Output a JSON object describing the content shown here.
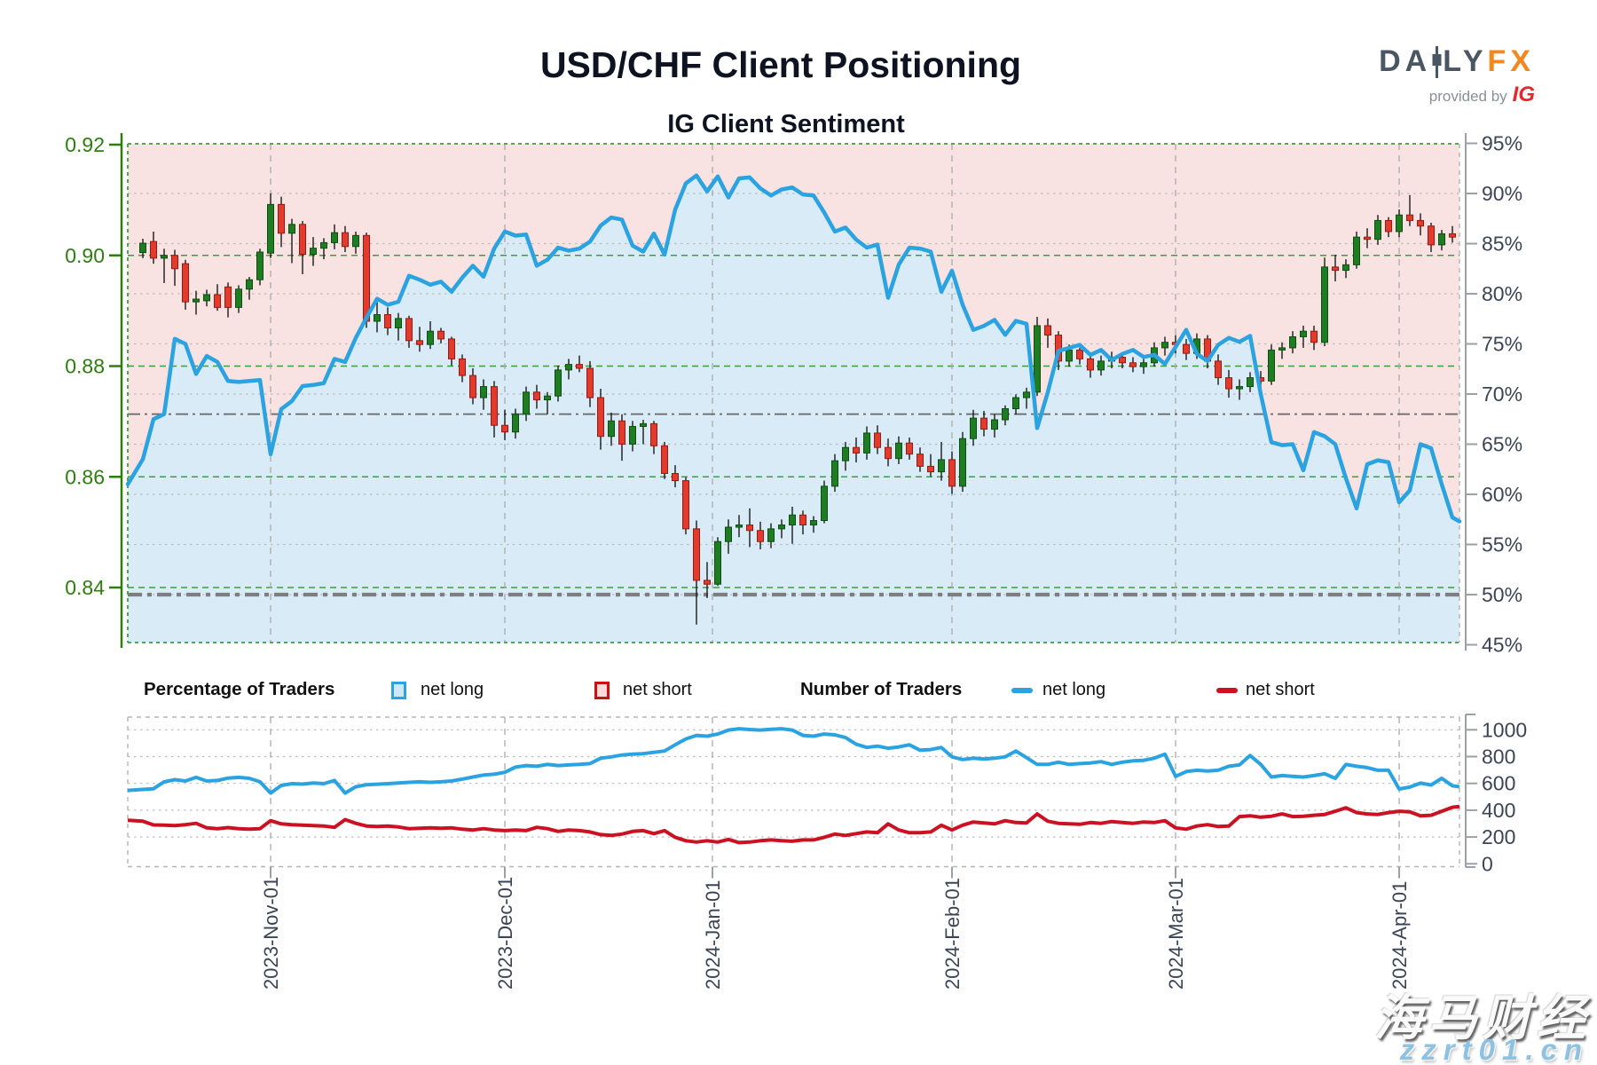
{
  "title": "USD/CHF Client Positioning",
  "subtitle": "IG Client Sentiment",
  "logo": {
    "brand_left": "DA",
    "brand_right": "LY",
    "brand_accent": "FX",
    "provided_by": "provided by",
    "provider": "IG",
    "accent_color": "#f4871f",
    "dark_color": "#4a5661",
    "provider_color": "#e8262d"
  },
  "legend": {
    "pct_group_title": "Percentage of Traders",
    "pct_net_long": "net long",
    "pct_net_short": "net short",
    "num_group_title": "Number of Traders",
    "num_net_long": "net long",
    "num_net_short": "net short"
  },
  "watermark": {
    "line1": "海马财经",
    "line2": "zzrt01.cn"
  },
  "chart_data": {
    "type": "candlestick+line",
    "title": "USD/CHF Client Positioning",
    "subtitle": "IG Client Sentiment",
    "price_axis": {
      "ticks": [
        0.92,
        0.9,
        0.88,
        0.86,
        0.84
      ],
      "min": 0.8296,
      "max": 0.92
    },
    "pct_axis": {
      "ticks": [
        95,
        90,
        85,
        80,
        75,
        70,
        65,
        60,
        55,
        50,
        45
      ],
      "min": 45,
      "max": 95
    },
    "count_axis": {
      "ticks": [
        1000,
        800,
        600,
        400,
        200,
        0
      ],
      "min": 0,
      "max": 1100
    },
    "ref_lines": {
      "thin_pct": 68,
      "thick_pct": 50
    },
    "months": [
      {
        "label": "2023-Nov-01",
        "idx": 12
      },
      {
        "label": "2023-Dec-01",
        "idx": 34
      },
      {
        "label": "2024-Jan-01",
        "idx": 53.5
      },
      {
        "label": "2024-Feb-01",
        "idx": 76
      },
      {
        "label": "2024-Mar-01",
        "idx": 97
      },
      {
        "label": "2024-Apr-01",
        "idx": 118
      }
    ],
    "dates": [
      "Oct-16",
      "Oct-17",
      "Oct-18",
      "Oct-19",
      "Oct-20",
      "Oct-23",
      "Oct-24",
      "Oct-25",
      "Oct-26",
      "Oct-27",
      "Oct-30",
      "Oct-31",
      "Nov-01",
      "Nov-02",
      "Nov-03",
      "Nov-06",
      "Nov-07",
      "Nov-08",
      "Nov-09",
      "Nov-10",
      "Nov-13",
      "Nov-14",
      "Nov-15",
      "Nov-16",
      "Nov-17",
      "Nov-20",
      "Nov-21",
      "Nov-22",
      "Nov-23",
      "Nov-24",
      "Nov-27",
      "Nov-28",
      "Nov-29",
      "Nov-30",
      "Dec-01",
      "Dec-04",
      "Dec-05",
      "Dec-06",
      "Dec-07",
      "Dec-08",
      "Dec-11",
      "Dec-12",
      "Dec-13",
      "Dec-14",
      "Dec-15",
      "Dec-18",
      "Dec-19",
      "Dec-20",
      "Dec-21",
      "Dec-22",
      "Dec-26",
      "Dec-27",
      "Dec-28",
      "Dec-29",
      "Jan-02",
      "Jan-03",
      "Jan-04",
      "Jan-05",
      "Jan-08",
      "Jan-09",
      "Jan-10",
      "Jan-11",
      "Jan-12",
      "Jan-15",
      "Jan-16",
      "Jan-17",
      "Jan-18",
      "Jan-19",
      "Jan-22",
      "Jan-23",
      "Jan-24",
      "Jan-25",
      "Jan-26",
      "Jan-29",
      "Jan-30",
      "Jan-31",
      "Feb-01",
      "Feb-02",
      "Feb-05",
      "Feb-06",
      "Feb-07",
      "Feb-08",
      "Feb-09",
      "Feb-12",
      "Feb-13",
      "Feb-14",
      "Feb-15",
      "Feb-16",
      "Feb-19",
      "Feb-20",
      "Feb-21",
      "Feb-22",
      "Feb-23",
      "Feb-26",
      "Feb-27",
      "Feb-28",
      "Feb-29",
      "Mar-01",
      "Mar-04",
      "Mar-05",
      "Mar-06",
      "Mar-07",
      "Mar-08",
      "Mar-11",
      "Mar-12",
      "Mar-13",
      "Mar-14",
      "Mar-15",
      "Mar-18",
      "Mar-19",
      "Mar-20",
      "Mar-21",
      "Mar-22",
      "Mar-25",
      "Mar-26",
      "Mar-27",
      "Mar-28",
      "Mar-29",
      "Apr-01",
      "Apr-02",
      "Apr-03",
      "Apr-04",
      "Apr-05",
      "Apr-08"
    ],
    "candles": [
      [
        0.9005,
        0.903,
        0.8995,
        0.9022
      ],
      [
        0.9025,
        0.9043,
        0.8985,
        0.8995
      ],
      [
        0.8995,
        0.9012,
        0.895,
        0.9
      ],
      [
        0.9,
        0.901,
        0.8945,
        0.8976
      ],
      [
        0.8985,
        0.8992,
        0.8902,
        0.8916
      ],
      [
        0.8916,
        0.8936,
        0.8893,
        0.8921
      ],
      [
        0.8918,
        0.8938,
        0.8908,
        0.8929
      ],
      [
        0.8929,
        0.8948,
        0.89,
        0.8906
      ],
      [
        0.8943,
        0.8951,
        0.8888,
        0.8906
      ],
      [
        0.8906,
        0.8946,
        0.8896,
        0.8939
      ],
      [
        0.8939,
        0.8961,
        0.892,
        0.8956
      ],
      [
        0.8956,
        0.9012,
        0.8946,
        0.9006
      ],
      [
        0.9004,
        0.9112,
        0.8995,
        0.9092
      ],
      [
        0.9092,
        0.9106,
        0.9015,
        0.904
      ],
      [
        0.904,
        0.9066,
        0.8986,
        0.9056
      ],
      [
        0.9056,
        0.9062,
        0.8966,
        0.9002
      ],
      [
        0.9002,
        0.9033,
        0.8981,
        0.9013
      ],
      [
        0.9013,
        0.9031,
        0.8993,
        0.9023
      ],
      [
        0.9023,
        0.9056,
        0.9011,
        0.9041
      ],
      [
        0.9041,
        0.9053,
        0.9006,
        0.9016
      ],
      [
        0.9016,
        0.9043,
        0.9003,
        0.9036
      ],
      [
        0.9036,
        0.9041,
        0.8869,
        0.8881
      ],
      [
        0.8881,
        0.8916,
        0.8861,
        0.8893
      ],
      [
        0.8893,
        0.8906,
        0.8856,
        0.8869
      ],
      [
        0.8869,
        0.8896,
        0.8846,
        0.8886
      ],
      [
        0.8886,
        0.8891,
        0.8833,
        0.8846
      ],
      [
        0.8846,
        0.8871,
        0.8826,
        0.8839
      ],
      [
        0.8839,
        0.8881,
        0.8831,
        0.8863
      ],
      [
        0.8863,
        0.8869,
        0.8841,
        0.8849
      ],
      [
        0.8849,
        0.8853,
        0.8801,
        0.8813
      ],
      [
        0.8813,
        0.8821,
        0.8771,
        0.8783
      ],
      [
        0.8783,
        0.8796,
        0.8731,
        0.8743
      ],
      [
        0.8743,
        0.8776,
        0.8721,
        0.8763
      ],
      [
        0.8763,
        0.8773,
        0.8671,
        0.8693
      ],
      [
        0.8693,
        0.8721,
        0.8666,
        0.8681
      ],
      [
        0.8681,
        0.8723,
        0.8669,
        0.8713
      ],
      [
        0.8713,
        0.8763,
        0.8701,
        0.8753
      ],
      [
        0.8753,
        0.8766,
        0.8723,
        0.8739
      ],
      [
        0.8739,
        0.8753,
        0.8713,
        0.8746
      ],
      [
        0.8746,
        0.8801,
        0.8736,
        0.8793
      ],
      [
        0.8793,
        0.8813,
        0.8776,
        0.8803
      ],
      [
        0.8803,
        0.8819,
        0.8789,
        0.8796
      ],
      [
        0.8796,
        0.8809,
        0.8726,
        0.8743
      ],
      [
        0.8743,
        0.8759,
        0.8649,
        0.8673
      ],
      [
        0.8673,
        0.8716,
        0.8656,
        0.8701
      ],
      [
        0.8701,
        0.8713,
        0.8629,
        0.8659
      ],
      [
        0.8659,
        0.8701,
        0.8646,
        0.8691
      ],
      [
        0.8691,
        0.8703,
        0.8659,
        0.8696
      ],
      [
        0.8696,
        0.8701,
        0.8641,
        0.8656
      ],
      [
        0.8656,
        0.8663,
        0.8596,
        0.8606
      ],
      [
        0.8606,
        0.8621,
        0.8581,
        0.8593
      ],
      [
        0.8593,
        0.8599,
        0.8496,
        0.8506
      ],
      [
        0.8506,
        0.8521,
        0.8333,
        0.8413
      ],
      [
        0.8413,
        0.8446,
        0.8381,
        0.8406
      ],
      [
        0.8406,
        0.8491,
        0.8403,
        0.8483
      ],
      [
        0.8483,
        0.8523,
        0.8461,
        0.8509
      ],
      [
        0.8509,
        0.8531,
        0.8491,
        0.8513
      ],
      [
        0.8513,
        0.8543,
        0.8473,
        0.8503
      ],
      [
        0.8503,
        0.8519,
        0.8469,
        0.8483
      ],
      [
        0.8483,
        0.8516,
        0.8471,
        0.8506
      ],
      [
        0.8506,
        0.8523,
        0.8489,
        0.8513
      ],
      [
        0.8513,
        0.8546,
        0.8479,
        0.8531
      ],
      [
        0.8531,
        0.8539,
        0.8496,
        0.8513
      ],
      [
        0.8513,
        0.8529,
        0.8499,
        0.8521
      ],
      [
        0.8521,
        0.8593,
        0.8516,
        0.8583
      ],
      [
        0.8583,
        0.8641,
        0.8573,
        0.8629
      ],
      [
        0.8629,
        0.8663,
        0.8611,
        0.8653
      ],
      [
        0.8653,
        0.8671,
        0.8626,
        0.8643
      ],
      [
        0.8643,
        0.8691,
        0.8631,
        0.8679
      ],
      [
        0.8679,
        0.8693,
        0.8641,
        0.8653
      ],
      [
        0.8653,
        0.8669,
        0.8619,
        0.8633
      ],
      [
        0.8633,
        0.8673,
        0.8623,
        0.8661
      ],
      [
        0.8661,
        0.8671,
        0.8631,
        0.8641
      ],
      [
        0.8641,
        0.8653,
        0.8609,
        0.8619
      ],
      [
        0.8619,
        0.8641,
        0.8601,
        0.8609
      ],
      [
        0.8609,
        0.8663,
        0.8593,
        0.8631
      ],
      [
        0.8631,
        0.8646,
        0.8569,
        0.8583
      ],
      [
        0.8583,
        0.8681,
        0.8573,
        0.8669
      ],
      [
        0.8669,
        0.8721,
        0.8656,
        0.8706
      ],
      [
        0.8706,
        0.8719,
        0.8673,
        0.8686
      ],
      [
        0.8686,
        0.8713,
        0.8671,
        0.8703
      ],
      [
        0.8703,
        0.8729,
        0.8693,
        0.8723
      ],
      [
        0.8723,
        0.8749,
        0.8713,
        0.8743
      ],
      [
        0.8743,
        0.8761,
        0.8723,
        0.8753
      ],
      [
        0.8753,
        0.8889,
        0.8746,
        0.8873
      ],
      [
        0.8873,
        0.8886,
        0.8833,
        0.8856
      ],
      [
        0.8856,
        0.8863,
        0.8793,
        0.8809
      ],
      [
        0.8809,
        0.8839,
        0.8799,
        0.8829
      ],
      [
        0.8829,
        0.8833,
        0.8803,
        0.8813
      ],
      [
        0.8813,
        0.8821,
        0.8779,
        0.8793
      ],
      [
        0.8793,
        0.8819,
        0.8783,
        0.8809
      ],
      [
        0.8809,
        0.8826,
        0.8796,
        0.8816
      ],
      [
        0.8816,
        0.8823,
        0.8796,
        0.8806
      ],
      [
        0.8806,
        0.8816,
        0.8789,
        0.8799
      ],
      [
        0.8799,
        0.8813,
        0.8786,
        0.8806
      ],
      [
        0.8806,
        0.8843,
        0.8799,
        0.8833
      ],
      [
        0.8833,
        0.8853,
        0.8819,
        0.8843
      ],
      [
        0.8843,
        0.8856,
        0.8823,
        0.8839
      ],
      [
        0.8839,
        0.8849,
        0.8811,
        0.8823
      ],
      [
        0.8823,
        0.8859,
        0.8813,
        0.8849
      ],
      [
        0.8849,
        0.8856,
        0.8796,
        0.8809
      ],
      [
        0.8809,
        0.8821,
        0.8766,
        0.8779
      ],
      [
        0.8779,
        0.8793,
        0.8743,
        0.8759
      ],
      [
        0.8759,
        0.8776,
        0.8739,
        0.8763
      ],
      [
        0.8763,
        0.8789,
        0.8753,
        0.8779
      ],
      [
        0.8779,
        0.8791,
        0.8759,
        0.8773
      ],
      [
        0.8773,
        0.8839,
        0.8766,
        0.8829
      ],
      [
        0.8829,
        0.8843,
        0.8813,
        0.8833
      ],
      [
        0.8833,
        0.8863,
        0.8823,
        0.8853
      ],
      [
        0.8853,
        0.8873,
        0.8833,
        0.8863
      ],
      [
        0.8863,
        0.8873,
        0.8829,
        0.8843
      ],
      [
        0.8843,
        0.8996,
        0.8836,
        0.8979
      ],
      [
        0.8979,
        0.9001,
        0.8953,
        0.8973
      ],
      [
        0.8973,
        0.8993,
        0.8959,
        0.8983
      ],
      [
        0.8983,
        0.9043,
        0.8976,
        0.9033
      ],
      [
        0.9033,
        0.9049,
        0.9013,
        0.9029
      ],
      [
        0.9029,
        0.9073,
        0.9019,
        0.9063
      ],
      [
        0.9063,
        0.9069,
        0.9033,
        0.9043
      ],
      [
        0.9043,
        0.9083,
        0.9033,
        0.9073
      ],
      [
        0.9073,
        0.9109,
        0.9053,
        0.9063
      ],
      [
        0.9063,
        0.9076,
        0.9036,
        0.9053
      ],
      [
        0.9053,
        0.9059,
        0.9006,
        0.9019
      ],
      [
        0.9019,
        0.9046,
        0.9009,
        0.9039
      ],
      [
        0.9039,
        0.9053,
        0.9023,
        0.9033
      ]
    ],
    "net_long_pct": [
      63.5,
      67.5,
      68.0,
      75.5,
      75.0,
      72.0,
      73.8,
      73.2,
      71.3,
      71.2,
      71.3,
      71.4,
      64.0,
      68.5,
      69.3,
      70.8,
      70.9,
      71.1,
      73.5,
      73.2,
      75.6,
      77.6,
      79.5,
      78.9,
      79.2,
      81.8,
      81.4,
      80.9,
      81.2,
      80.2,
      81.6,
      82.8,
      81.7,
      84.5,
      86.2,
      85.8,
      85.9,
      82.8,
      83.4,
      84.6,
      84.3,
      84.5,
      85.2,
      86.8,
      87.6,
      87.4,
      84.8,
      84.2,
      86.0,
      83.9,
      88.4,
      91.0,
      91.8,
      90.2,
      91.7,
      89.6,
      91.5,
      91.6,
      90.5,
      89.8,
      90.4,
      90.6,
      89.9,
      89.8,
      88.1,
      86.2,
      86.6,
      85.4,
      84.6,
      84.9,
      79.6,
      82.9,
      84.6,
      84.5,
      84.2,
      80.2,
      82.3,
      78.9,
      76.4,
      76.8,
      77.4,
      75.9,
      77.3,
      77.0,
      66.6,
      70.2,
      74.3,
      74.6,
      74.9,
      73.9,
      74.4,
      73.4,
      74.0,
      74.4,
      73.7,
      73.9,
      73.0,
      74.7,
      76.4,
      74.0,
      73.3,
      74.9,
      75.6,
      75.2,
      75.8,
      70.0,
      65.2,
      64.9,
      65.0,
      62.4,
      66.2,
      65.8,
      65.0,
      61.6,
      58.6,
      63.0,
      63.4,
      63.2,
      59.2,
      60.4,
      65.0,
      64.6,
      61.0,
      57.7
    ],
    "traders_net_long": [
      555,
      560,
      612,
      628,
      618,
      645,
      618,
      622,
      640,
      645,
      638,
      612,
      528,
      585,
      598,
      595,
      603,
      598,
      622,
      528,
      575,
      590,
      594,
      598,
      603,
      608,
      612,
      608,
      612,
      618,
      632,
      648,
      662,
      668,
      683,
      722,
      733,
      728,
      742,
      733,
      738,
      742,
      748,
      788,
      798,
      812,
      818,
      822,
      832,
      842,
      888,
      932,
      958,
      952,
      968,
      998,
      1008,
      1002,
      998,
      1003,
      1008,
      998,
      958,
      952,
      968,
      962,
      942,
      892,
      868,
      878,
      862,
      872,
      888,
      848,
      852,
      868,
      798,
      778,
      788,
      782,
      788,
      798,
      842,
      792,
      742,
      742,
      758,
      742,
      748,
      752,
      762,
      742,
      758,
      768,
      772,
      788,
      818,
      652,
      688,
      698,
      692,
      698,
      728,
      738,
      808,
      742,
      648,
      658,
      652,
      648,
      658,
      672,
      638,
      742,
      728,
      718,
      698,
      698,
      558,
      572,
      602,
      588,
      638,
      582
    ],
    "traders_net_short": [
      318,
      290,
      288,
      285,
      292,
      302,
      268,
      262,
      270,
      262,
      258,
      262,
      322,
      298,
      292,
      288,
      285,
      282,
      272,
      330,
      302,
      282,
      278,
      282,
      275,
      262,
      265,
      268,
      265,
      268,
      258,
      252,
      262,
      252,
      248,
      252,
      248,
      272,
      262,
      242,
      252,
      248,
      238,
      218,
      212,
      222,
      242,
      248,
      225,
      248,
      198,
      172,
      162,
      172,
      162,
      182,
      158,
      162,
      172,
      178,
      172,
      168,
      178,
      178,
      198,
      222,
      212,
      225,
      238,
      232,
      298,
      252,
      232,
      232,
      238,
      288,
      252,
      288,
      312,
      305,
      298,
      322,
      308,
      305,
      372,
      318,
      302,
      298,
      295,
      308,
      302,
      315,
      308,
      302,
      312,
      308,
      322,
      268,
      258,
      282,
      292,
      278,
      282,
      352,
      358,
      348,
      355,
      372,
      352,
      355,
      362,
      368,
      392,
      418,
      382,
      372,
      368,
      382,
      392,
      388,
      358,
      362,
      392,
      422
    ],
    "colors": {
      "up": "#1e7d23",
      "up_stroke": "#0d4f10",
      "down": "#e23b2e",
      "down_stroke": "#9b1810",
      "wick": "#1a1a1a",
      "sentiment": "#2aa3e0",
      "sentiment_fill": "#d9ebf7",
      "short_fill": "#f9e2e2",
      "grid_price": "#3c9e3c",
      "grid_pct": "#bbbbbb",
      "month_line": "#aaaaaa",
      "axis_left": "#2e7d0f",
      "axis_right": "#3b4554",
      "axis_line": "#9aa0a6",
      "ref_line": "#666666",
      "ref_line_thick": "#7e7e7e",
      "long_count": "#2aa3e0",
      "short_count": "#cc1122"
    }
  }
}
